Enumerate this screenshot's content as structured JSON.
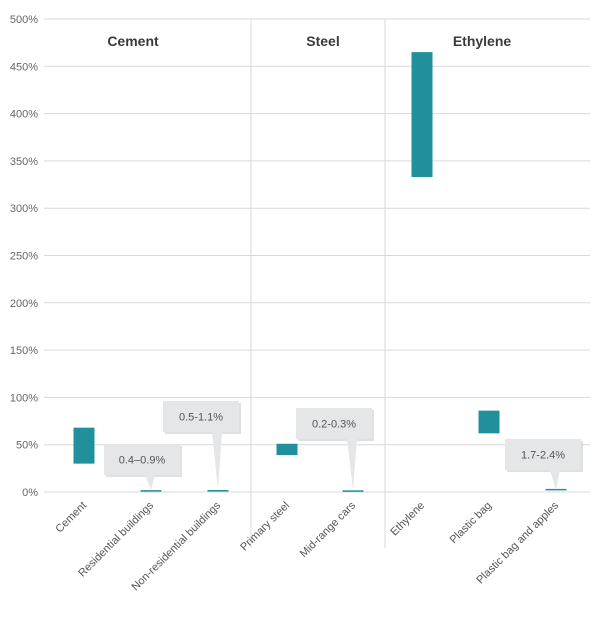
{
  "chart_data": {
    "type": "bar",
    "subtype": "floating-range",
    "ylim": [
      0,
      500
    ],
    "y_unit": "%",
    "y_ticks": [
      0,
      50,
      100,
      150,
      200,
      250,
      300,
      350,
      400,
      450,
      500
    ],
    "y_tick_labels": [
      "0%",
      "50%",
      "100%",
      "150%",
      "200%",
      "250%",
      "300%",
      "350%",
      "400%",
      "450%",
      "500%"
    ],
    "grid": true,
    "groups": [
      {
        "name": "Cement",
        "categories": [
          "Cement",
          "Residential buildings",
          "Non-residential buildings"
        ]
      },
      {
        "name": "Steel",
        "categories": [
          "Primary steel",
          "Mid-range cars"
        ]
      },
      {
        "name": "Ethylene",
        "categories": [
          "Ethylene",
          "Plastic bag",
          "Plastic bag and apples"
        ]
      }
    ],
    "categories": [
      "Cement",
      "Residential buildings",
      "Non-residential buildings",
      "Primary steel",
      "Mid-range cars",
      "Ethylene",
      "Plastic bag",
      "Plastic bag and apples"
    ],
    "ranges": [
      {
        "category": "Cement",
        "low": 30,
        "high": 68
      },
      {
        "category": "Residential buildings",
        "low": 0.4,
        "high": 0.9
      },
      {
        "category": "Non-residential buildings",
        "low": 0.5,
        "high": 1.1
      },
      {
        "category": "Primary steel",
        "low": 39,
        "high": 51
      },
      {
        "category": "Mid-range cars",
        "low": 0.2,
        "high": 0.3
      },
      {
        "category": "Ethylene",
        "low": 333,
        "high": 465
      },
      {
        "category": "Plastic bag",
        "low": 62,
        "high": 86
      },
      {
        "category": "Plastic bag and apples",
        "low": 1.7,
        "high": 2.4
      }
    ],
    "callouts": [
      {
        "category": "Residential buildings",
        "text": "0.4–0.9%"
      },
      {
        "category": "Non-residential buildings",
        "text": "0.5-1.1%"
      },
      {
        "category": "Mid-range cars",
        "text": "0.2-0.3%"
      },
      {
        "category": "Plastic bag and apples",
        "text": "1.7-2.4%"
      }
    ],
    "colors": {
      "bar": "#22909c",
      "grid": "#d9d9d9",
      "callout_bg": "#e4e6e8"
    }
  }
}
